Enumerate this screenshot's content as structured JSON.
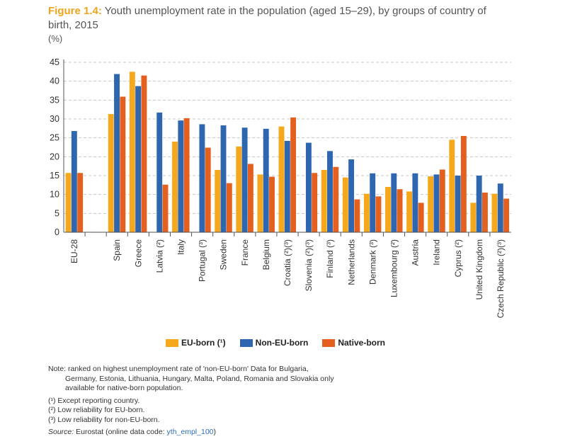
{
  "header": {
    "figure_label": "Figure 1.4:",
    "title": "Youth unemployment rate in the population (aged 15–29), by groups of country of",
    "title_line2": "birth, 2015",
    "unit": "(%)"
  },
  "chart_data": {
    "type": "bar",
    "categories": [
      "EU-28",
      "",
      "Spain",
      "Greece",
      "Latvia (²)",
      "Italy",
      "Portugal (³)",
      "Sweden",
      "France",
      "Belgium",
      "Croatia (²)(³)",
      "Slovenia (²)(³)",
      "Finland (³)",
      "Netherlands",
      "Denmark (³)",
      "Luxembourg (²)",
      "Austria",
      "Ireland",
      "Cyprus (²)",
      "United Kingdom",
      "Czech Republic (²)(³)"
    ],
    "series": [
      {
        "name": "EU-born (¹)",
        "color": "#f5a81c",
        "values": [
          15.7,
          null,
          31.3,
          42.5,
          null,
          24.0,
          null,
          16.5,
          22.7,
          15.3,
          28.0,
          null,
          16.5,
          14.5,
          10.2,
          12.0,
          10.8,
          14.8,
          24.5,
          7.8,
          10.2
        ]
      },
      {
        "name": "Non-EU-born",
        "color": "#2e66b0",
        "values": [
          26.8,
          null,
          41.9,
          38.7,
          31.7,
          29.6,
          28.6,
          28.3,
          27.7,
          27.4,
          24.2,
          23.7,
          21.5,
          19.3,
          15.6,
          15.6,
          15.6,
          15.3,
          15.0,
          15.0,
          12.9
        ]
      },
      {
        "name": "Native-born",
        "color": "#e4601f",
        "values": [
          15.7,
          null,
          35.9,
          41.5,
          12.6,
          30.2,
          22.4,
          13.0,
          18.1,
          14.7,
          30.4,
          15.7,
          17.3,
          8.7,
          9.5,
          11.4,
          7.8,
          16.6,
          25.5,
          10.5,
          8.9
        ]
      }
    ],
    "ylim": [
      0,
      45
    ],
    "yticks": [
      0,
      5,
      10,
      15,
      20,
      25,
      30,
      35,
      40,
      45
    ],
    "grid": true,
    "legend_position": "bottom"
  },
  "legend": {
    "items": [
      {
        "label": "EU-born (¹)",
        "color": "#f5a81c"
      },
      {
        "label": "Non-EU-born",
        "color": "#2e66b0"
      },
      {
        "label": "Native-born",
        "color": "#e4601f"
      }
    ]
  },
  "notes": {
    "note_line1": "Note: ranked on highest unemployment rate of 'non-EU-born' Data for Bulgaria,",
    "note_line2": "Germany, Estonia, Lithuania, Hungary, Malta, Poland, Romania and Slovakia only",
    "note_line3": "available for native-born population.",
    "fn1": "(¹) Except reporting country.",
    "fn2": "(²) Low reliability for EU-born.",
    "fn3": "(³) Low reliability for non-EU-born.",
    "source_label": "Source:",
    "source_text": " Eurostat (online data code: ",
    "source_code": "yth_empl_100",
    "source_end": ")"
  }
}
